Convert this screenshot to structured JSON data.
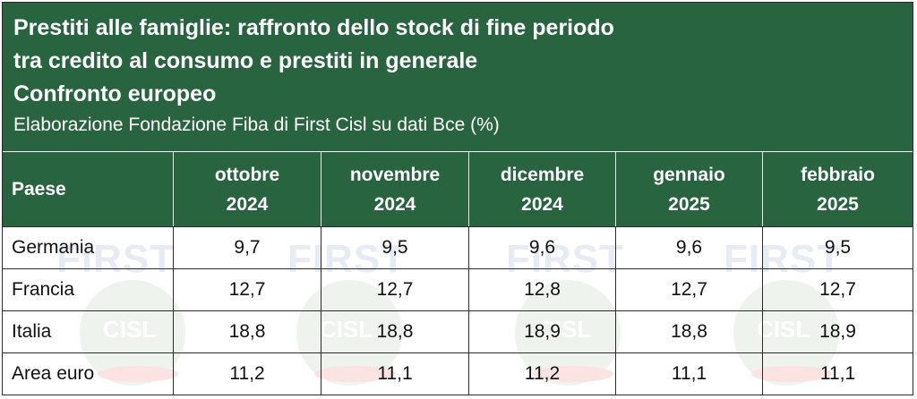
{
  "header": {
    "title_lines": [
      "Prestiti alle famiglie: raffronto dello stock di fine periodo",
      "tra credito al consumo e prestiti in generale",
      "Confronto europeo"
    ],
    "subtitle": "Elaborazione Fondazione Fiba di First Cisl su dati Bce (%)"
  },
  "table": {
    "columns": [
      {
        "line1": "Paese",
        "line2": ""
      },
      {
        "line1": "ottobre",
        "line2": "2024"
      },
      {
        "line1": "novembre",
        "line2": "2024"
      },
      {
        "line1": "dicembre",
        "line2": "2024"
      },
      {
        "line1": "gennaio",
        "line2": "2025"
      },
      {
        "line1": "febbraio",
        "line2": "2025"
      }
    ],
    "rows": [
      {
        "paese": "Germania",
        "values": [
          "9,7",
          "9,5",
          "9,6",
          "9,6",
          "9,5"
        ]
      },
      {
        "paese": "Francia",
        "values": [
          "12,7",
          "12,7",
          "12,8",
          "12,7",
          "12,7"
        ]
      },
      {
        "paese": "Italia",
        "values": [
          "18,8",
          "18,8",
          "18,9",
          "18,8",
          "18,9"
        ]
      },
      {
        "paese": "Area euro",
        "values": [
          "11,2",
          "11,1",
          "11,2",
          "11,1",
          "11,1"
        ]
      }
    ]
  },
  "watermark": {
    "text": "FIRST",
    "logo_text": "CISL"
  },
  "colors": {
    "header_bg": "#27643f",
    "header_text": "#ffffff"
  }
}
